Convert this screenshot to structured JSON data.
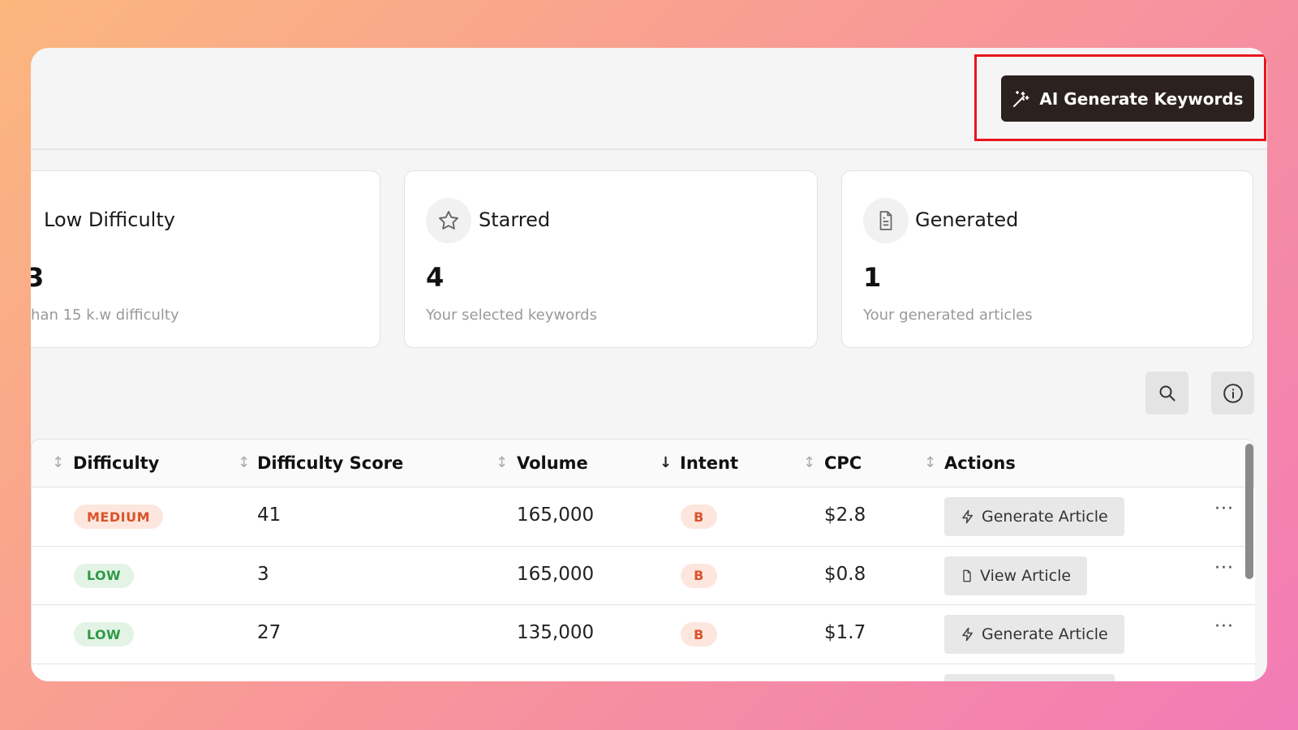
{
  "header": {
    "button": "AI Generate Keywords"
  },
  "cards": [
    {
      "label": "Low Difficulty",
      "value": "3",
      "caption": "han 15 k.w difficulty"
    },
    {
      "label": "Starred",
      "value": "4",
      "caption": "Your selected keywords"
    },
    {
      "label": "Generated",
      "value": "1",
      "caption": "Your generated articles"
    }
  ],
  "table": {
    "headers": [
      "Difficulty",
      "Difficulty Score",
      "Volume",
      "Intent",
      "CPC",
      "Actions"
    ],
    "rows": [
      [
        "MEDIUM",
        "41",
        "165,000",
        "B",
        "$2.8",
        "Generate Article"
      ],
      [
        "LOW",
        "3",
        "165,000",
        "B",
        "$0.8",
        "View Article"
      ],
      [
        "LOW",
        "27",
        "135,000",
        "B",
        "$1.7",
        "Generate Article"
      ]
    ]
  }
}
